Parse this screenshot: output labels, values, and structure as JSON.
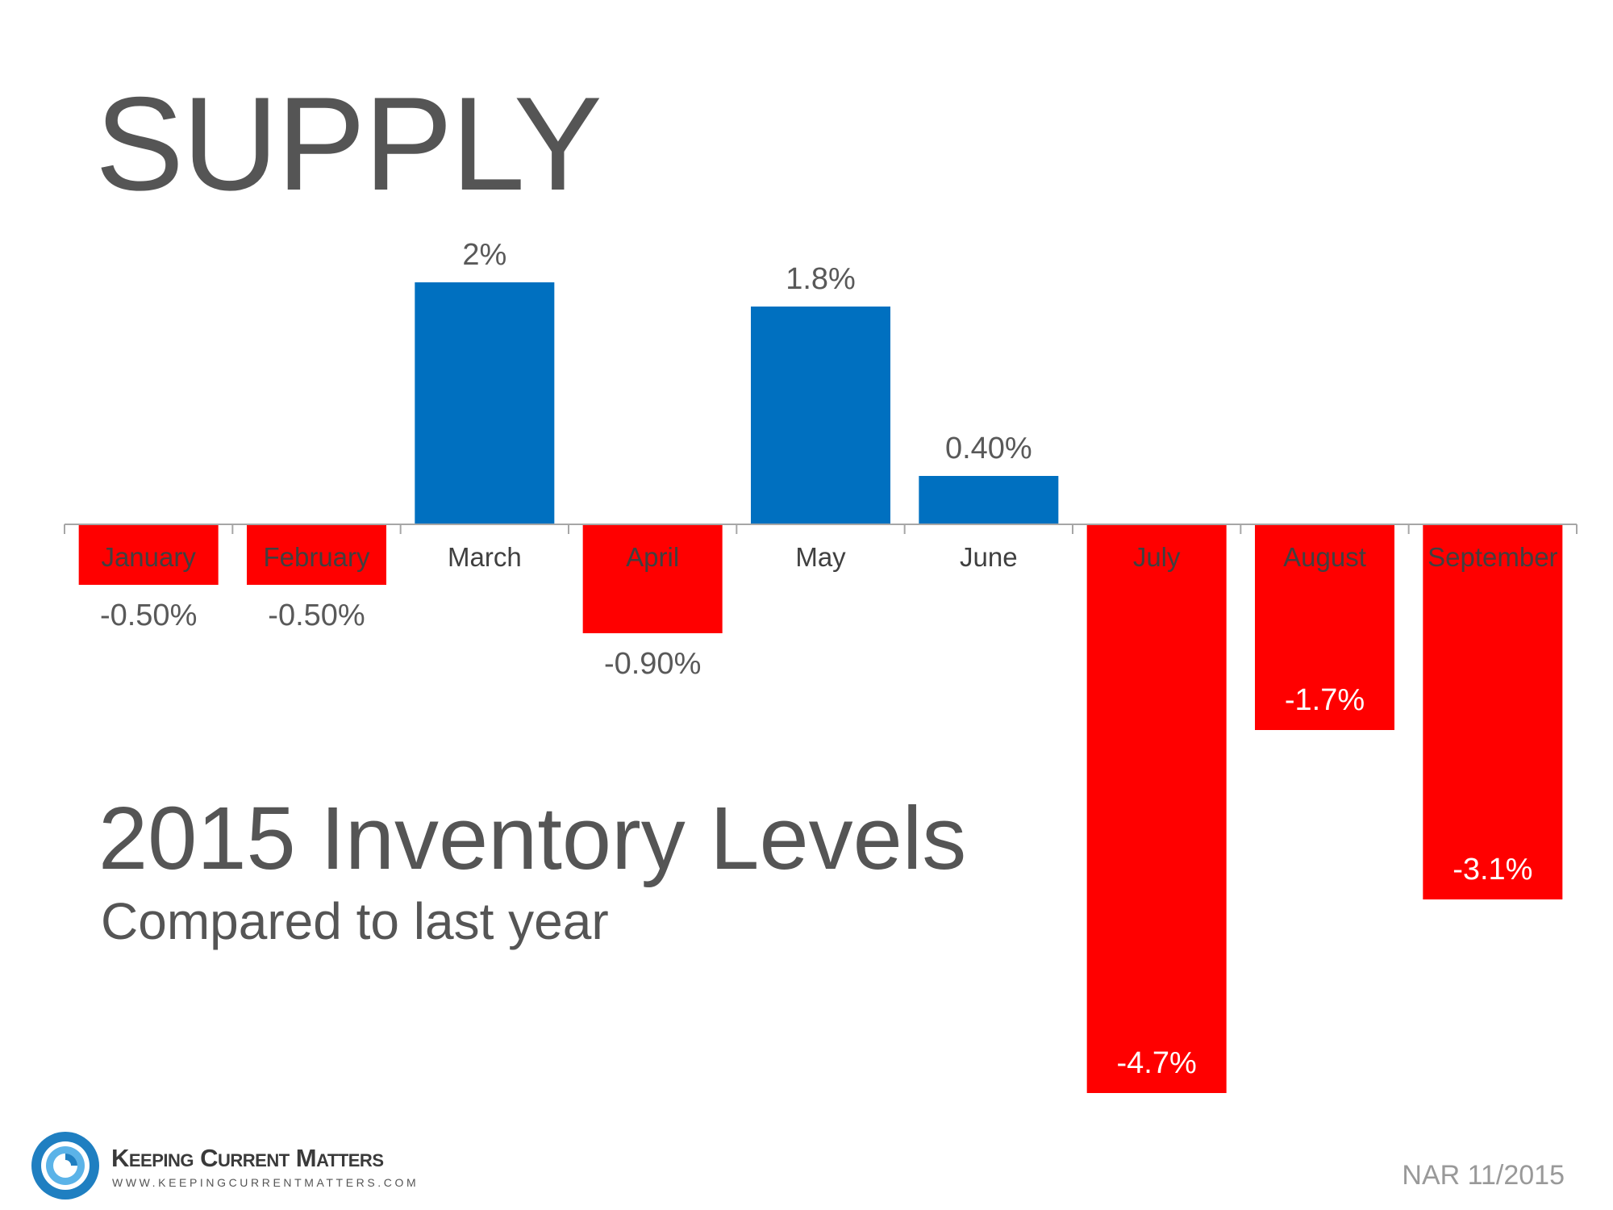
{
  "header": {
    "title": "SUPPLY"
  },
  "caption": {
    "title": "2015 Inventory Levels",
    "subtitle": "Compared to last year"
  },
  "footer": {
    "brand_name": "Keeping Current Matters",
    "brand_url": "WWW.KEEPINGCURRENTMATTERS.COM",
    "source": "NAR 11/2015"
  },
  "colors": {
    "positive": "#0070C0",
    "negative": "#FF0000",
    "axis": "#A6A6A6",
    "text": "#404040",
    "logo_blue": "#1F7FC1"
  },
  "chart_data": {
    "type": "bar",
    "title": "2015 Inventory Levels",
    "subtitle": "Compared to last year",
    "xlabel": "",
    "ylabel": "",
    "unit": "%",
    "ylim": [
      -4.7,
      2.0
    ],
    "grid": false,
    "categories": [
      "January",
      "February",
      "March",
      "April",
      "May",
      "June",
      "July",
      "August",
      "September"
    ],
    "values": [
      -0.5,
      -0.5,
      2.0,
      -0.9,
      1.8,
      0.4,
      -4.7,
      -1.7,
      -3.1
    ],
    "data_labels": [
      "-0.50%",
      "-0.50%",
      "2%",
      "-0.90%",
      "1.8%",
      "0.40%",
      "-4.7%",
      "-1.7%",
      "-3.1%"
    ]
  }
}
